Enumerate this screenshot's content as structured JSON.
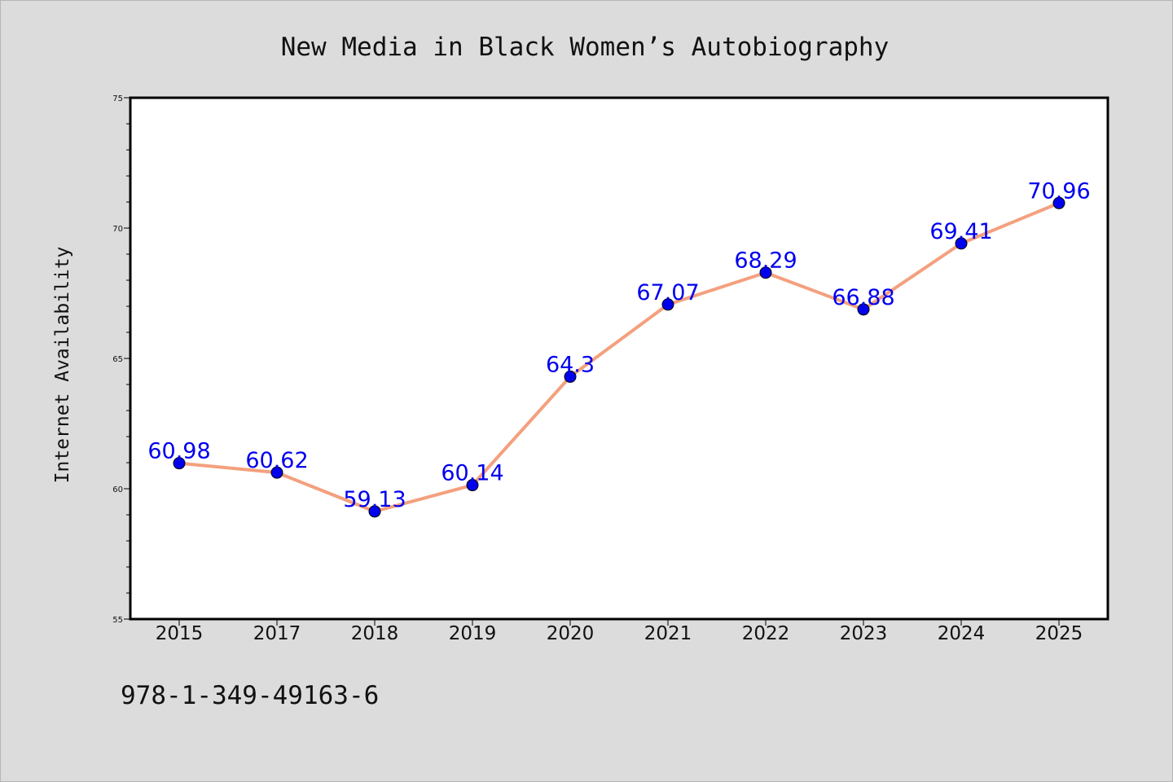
{
  "chart_data": {
    "type": "line",
    "title": "New Media in Black Women’s Autobiography",
    "ylabel": "Internet Availability",
    "categories": [
      "2015",
      "2017",
      "2018",
      "2019",
      "2020",
      "2021",
      "2022",
      "2023",
      "2024",
      "2025"
    ],
    "series": [
      {
        "values": [
          60.98,
          60.62,
          59.13,
          60.14,
          64.3,
          67.07,
          68.29,
          66.88,
          69.41,
          70.96
        ],
        "line_color": "#f4a07e",
        "marker_color": "#0000ee",
        "label_color": "#0000ee"
      }
    ],
    "data_labels": [
      "60.98",
      "60.62",
      "59.13",
      "60.14",
      "64.3",
      "67.07",
      "68.29",
      "66.88",
      "69.41",
      "70.96"
    ],
    "ylim": [
      55,
      75
    ],
    "yticks": [
      "55",
      "60",
      "65",
      "70",
      "75"
    ],
    "grid": false,
    "legend": "none"
  },
  "footer": {
    "isbn": "978-1-349-49163-6"
  },
  "colors": {
    "background": "#dcdcdc",
    "plot_background": "#ffffff"
  }
}
